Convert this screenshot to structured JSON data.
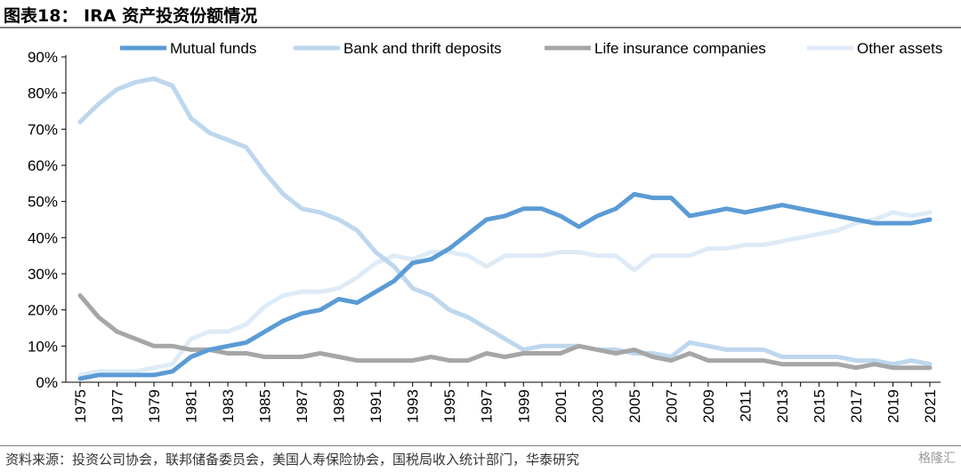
{
  "header": {
    "title": "图表18：  IRA 资产投资份额情况"
  },
  "footer": {
    "source": "资料来源：投资公司协会，联邦储备委员会，美国人寿保险协会，国税局收入统计部门，华泰研究",
    "watermark": "格隆汇"
  },
  "chart_data": {
    "type": "line",
    "legend_position": "top",
    "grid": false,
    "x": [
      1975,
      1976,
      1977,
      1978,
      1979,
      1980,
      1981,
      1982,
      1983,
      1984,
      1985,
      1986,
      1987,
      1988,
      1989,
      1990,
      1991,
      1992,
      1993,
      1994,
      1995,
      1996,
      1997,
      1998,
      1999,
      2000,
      2001,
      2002,
      2003,
      2004,
      2005,
      2006,
      2007,
      2008,
      2009,
      2010,
      2011,
      2012,
      2013,
      2014,
      2015,
      2016,
      2017,
      2018,
      2019,
      2020,
      2021
    ],
    "x_tick_labels": [
      "1975",
      "1977",
      "1979",
      "1981",
      "1983",
      "1985",
      "1987",
      "1989",
      "1991",
      "1993",
      "1995",
      "1997",
      "1999",
      "2001",
      "2003",
      "2005",
      "2007",
      "2009",
      "2011",
      "2013",
      "2015",
      "2017",
      "2019",
      "2021"
    ],
    "ylim": [
      0,
      90
    ],
    "y_tick_labels": [
      "0%",
      "10%",
      "20%",
      "30%",
      "40%",
      "50%",
      "60%",
      "70%",
      "80%",
      "90%"
    ],
    "series": [
      {
        "name": "Mutual funds",
        "color": "#5b9bd5",
        "values": [
          1,
          2,
          2,
          2,
          2,
          3,
          7,
          9,
          10,
          11,
          14,
          17,
          19,
          20,
          23,
          22,
          25,
          28,
          33,
          34,
          37,
          41,
          45,
          46,
          48,
          48,
          46,
          43,
          46,
          48,
          52,
          51,
          51,
          46,
          47,
          48,
          47,
          48,
          49,
          48,
          47,
          46,
          45,
          44,
          44,
          44,
          45
        ]
      },
      {
        "name": "Bank and thrift deposits",
        "color": "#bdd7ee",
        "values": [
          72,
          77,
          81,
          83,
          84,
          82,
          73,
          69,
          67,
          65,
          58,
          52,
          48,
          47,
          45,
          42,
          36,
          32,
          26,
          24,
          20,
          18,
          15,
          12,
          9,
          10,
          10,
          10,
          9,
          9,
          8,
          8,
          7,
          11,
          10,
          9,
          9,
          9,
          7,
          7,
          7,
          7,
          6,
          6,
          5,
          6,
          5
        ]
      },
      {
        "name": "Life insurance companies",
        "color": "#a6a6a6",
        "values": [
          24,
          18,
          14,
          12,
          10,
          10,
          9,
          9,
          8,
          8,
          7,
          7,
          7,
          8,
          7,
          6,
          6,
          6,
          6,
          7,
          6,
          6,
          8,
          7,
          8,
          8,
          8,
          10,
          9,
          8,
          9,
          7,
          6,
          8,
          6,
          6,
          6,
          6,
          5,
          5,
          5,
          5,
          4,
          5,
          4,
          4,
          4
        ]
      },
      {
        "name": "Other assets",
        "color": "#deebf7",
        "values": [
          2,
          3,
          3,
          3,
          4,
          5,
          12,
          14,
          14,
          16,
          21,
          24,
          25,
          25,
          26,
          29,
          33,
          35,
          34,
          36,
          36,
          35,
          32,
          35,
          35,
          35,
          36,
          36,
          35,
          35,
          31,
          35,
          35,
          35,
          37,
          37,
          38,
          38,
          39,
          40,
          41,
          42,
          44,
          45,
          47,
          46,
          47
        ]
      }
    ]
  }
}
